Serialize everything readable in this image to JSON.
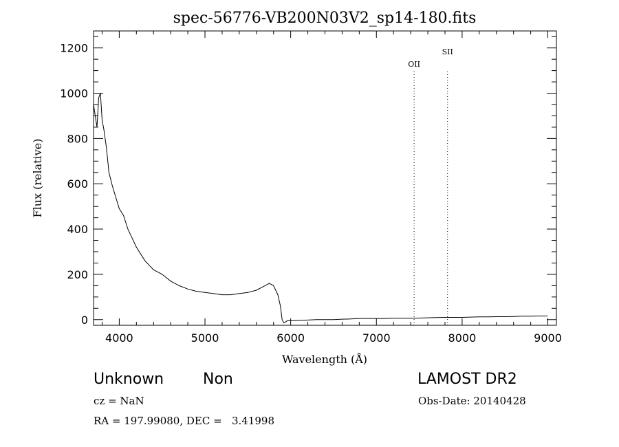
{
  "chart_data": {
    "type": "line",
    "title": "spec-56776-VB200N03V2_sp14-180.fits",
    "xlabel": "Wavelength (Å)",
    "ylabel": "Flux (relative)",
    "xlim": [
      3700,
      9100
    ],
    "ylim": [
      -25,
      1275
    ],
    "xticks": [
      4000,
      5000,
      6000,
      7000,
      8000,
      9000
    ],
    "yticks": [
      0,
      200,
      400,
      600,
      800,
      1000,
      1200
    ],
    "grid": false,
    "line_color": "#000000",
    "series": [
      {
        "x": [
          3700,
          3720,
          3740,
          3760,
          3780,
          3800,
          3820,
          3850,
          3880,
          3920,
          3960,
          4000,
          4050,
          4100,
          4150,
          4200,
          4250,
          4300,
          4350,
          4400,
          4450,
          4500,
          4600,
          4700,
          4800,
          4900,
          5000,
          5100,
          5200,
          5300,
          5400,
          5500,
          5600,
          5700,
          5750,
          5800,
          5850,
          5880,
          5900,
          5920,
          5940,
          5960,
          6000,
          6100,
          6200,
          6300,
          6400,
          6500,
          6600,
          6700,
          6800,
          6900,
          7000,
          7100,
          7200,
          7300,
          7400,
          7500,
          7600,
          7700,
          7800,
          7900,
          8000,
          8100,
          8200,
          8300,
          8400,
          8500,
          8600,
          8700,
          8800,
          8900,
          9000
        ],
        "y": [
          950,
          900,
          850,
          980,
          1000,
          880,
          840,
          760,
          650,
          590,
          540,
          490,
          460,
          400,
          360,
          320,
          290,
          260,
          240,
          220,
          210,
          200,
          170,
          150,
          135,
          125,
          120,
          115,
          110,
          110,
          115,
          120,
          130,
          150,
          160,
          150,
          110,
          60,
          0,
          -15,
          -10,
          -5,
          -5,
          -3,
          -2,
          0,
          0,
          0,
          2,
          3,
          5,
          5,
          5,
          5,
          6,
          6,
          6,
          7,
          8,
          9,
          10,
          10,
          10,
          11,
          12,
          12,
          13,
          13,
          14,
          15,
          15,
          16,
          16
        ]
      }
    ],
    "emission_lines": [
      {
        "label": "OII",
        "wavelength": 7440
      },
      {
        "label": "SII",
        "wavelength": 7830
      }
    ]
  },
  "info": {
    "class": "Unknown",
    "subclass": "Non",
    "survey": "LAMOST DR2",
    "cz": "cz = NaN",
    "obs_date": "Obs-Date: 20140428",
    "coords": "RA = 197.99080, DEC =   3.41998"
  }
}
